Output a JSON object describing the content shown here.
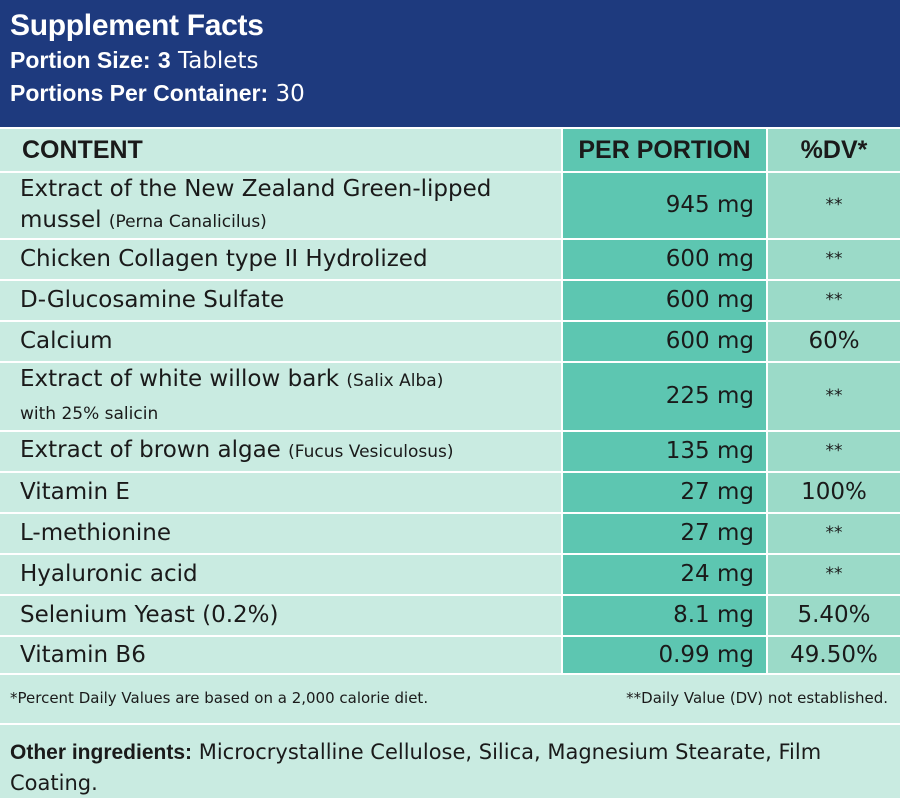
{
  "header": {
    "title": "Supplement Facts",
    "portion_size_label": "Portion Size:",
    "portion_size_number": "3",
    "portion_size_unit": "Tablets",
    "portions_label": "Portions Per Container:",
    "portions_value": "30"
  },
  "table": {
    "columns": [
      "CONTENT",
      "PER PORTION",
      "%DV*"
    ],
    "rows": [
      {
        "name": "Extract of the New Zealand Green-lipped mussel",
        "sub": "(Perna Canalicilus)",
        "amount": "945 mg",
        "dv": "**"
      },
      {
        "name": "Chicken Collagen type II Hydrolized",
        "sub": "",
        "amount": "600 mg",
        "dv": "**"
      },
      {
        "name": "D-Glucosamine Sulfate",
        "sub": "",
        "amount": "600 mg",
        "dv": "**"
      },
      {
        "name": "Calcium",
        "sub": "",
        "amount": "600 mg",
        "dv": "60%"
      },
      {
        "name": "Extract of white willow bark",
        "sub": "(Salix Alba)",
        "sub2": "with 25% salicin",
        "amount": "225 mg",
        "dv": "**"
      },
      {
        "name": "Extract of brown algae",
        "sub": "(Fucus Vesiculosus)",
        "amount": "135 mg",
        "dv": "**"
      },
      {
        "name": "Vitamin E",
        "sub": "",
        "amount": "27 mg",
        "dv": "100%"
      },
      {
        "name": "L-methionine",
        "sub": "",
        "amount": "27 mg",
        "dv": "**"
      },
      {
        "name": "Hyaluronic acid",
        "sub": "",
        "amount": "24 mg",
        "dv": "**"
      },
      {
        "name": "Selenium Yeast (0.2%)",
        "sub": "",
        "amount": "8.1 mg",
        "dv": "5.40%"
      },
      {
        "name": "Vitamin B6",
        "sub": "",
        "amount": "0.99 mg",
        "dv": "49.50%"
      }
    ]
  },
  "footnotes": {
    "left": "*Percent Daily Values are based on a 2,000 calorie diet.",
    "right": "**Daily Value (DV) not established."
  },
  "other": {
    "label": "Other ingredients:",
    "text": "Microcrystalline Cellulose, Silica, Magnesium Stearate, Film Coating."
  },
  "colors": {
    "header_bg": "#1e3a7e",
    "page_bg": "#c9ebe1",
    "portion_col_bg": "#5dc6b1",
    "dv_col_bg": "#9bdac8"
  }
}
